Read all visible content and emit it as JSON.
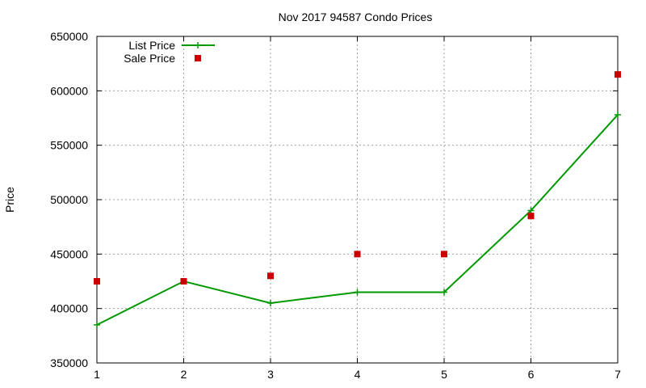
{
  "chart_data": {
    "type": "line",
    "title": "Nov 2017 94587 Condo Prices",
    "xlabel": "",
    "ylabel": "Price",
    "x": [
      1,
      2,
      3,
      4,
      5,
      6,
      7
    ],
    "xlim": [
      1,
      7
    ],
    "ylim": [
      350000,
      650000
    ],
    "x_ticks": [
      1,
      2,
      3,
      4,
      5,
      6,
      7
    ],
    "y_ticks": [
      350000,
      400000,
      450000,
      500000,
      550000,
      600000,
      650000
    ],
    "grid": true,
    "legend_position": "top-left",
    "series": [
      {
        "name": "List Price",
        "style": "line-plus",
        "color": "#009900",
        "values": [
          385000,
          425000,
          405000,
          415000,
          415000,
          490000,
          578000
        ]
      },
      {
        "name": "Sale Price",
        "style": "square-points",
        "color": "#cc0000",
        "values": [
          425000,
          425000,
          430000,
          450000,
          450000,
          485000,
          615000
        ]
      }
    ]
  }
}
